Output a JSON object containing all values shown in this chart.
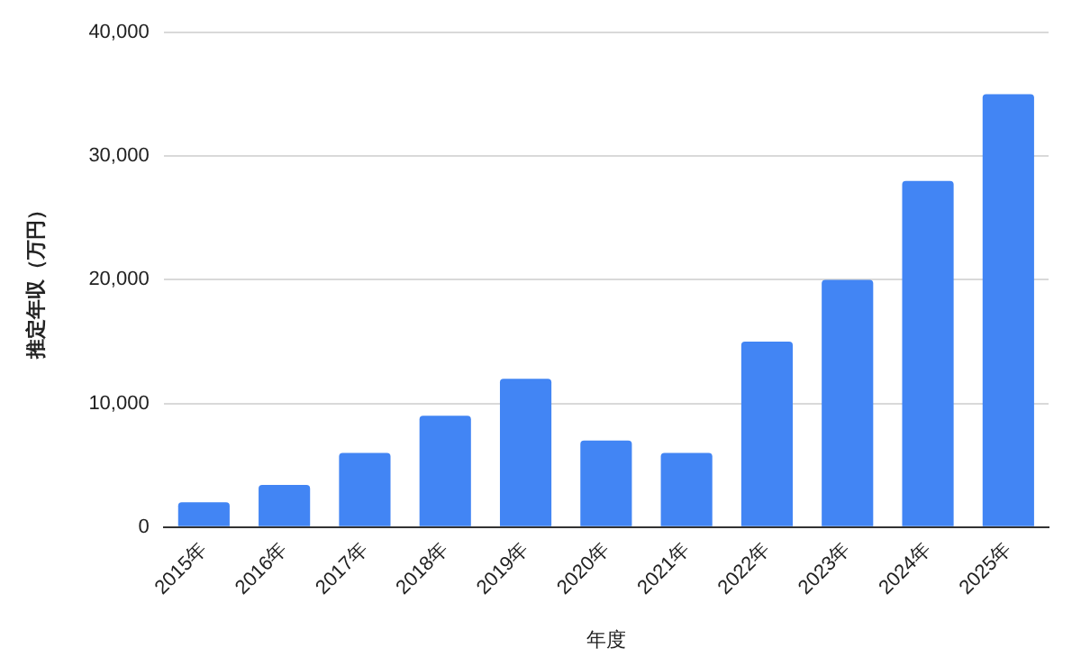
{
  "chart_data": {
    "type": "bar",
    "xlabel": "年度",
    "ylabel": "推定年収（万円）",
    "categories": [
      "2015年",
      "2016年",
      "2017年",
      "2018年",
      "2019年",
      "2020年",
      "2021年",
      "2022年",
      "2023年",
      "2024年",
      "2025年"
    ],
    "values": [
      2000,
      3400,
      6000,
      9000,
      12000,
      7000,
      6000,
      15000,
      20000,
      28000,
      35000
    ],
    "color": "#4285f4",
    "ylim": [
      0,
      40000
    ],
    "yticks": [
      0,
      {
        "value": 10000,
        "label": "10,000"
      },
      {
        "value": 20000,
        "label": "20,000"
      },
      {
        "value": 30000,
        "label": "30,000"
      },
      {
        "value": 40000,
        "label": "40,000"
      }
    ],
    "grid": "y",
    "legend": false
  }
}
